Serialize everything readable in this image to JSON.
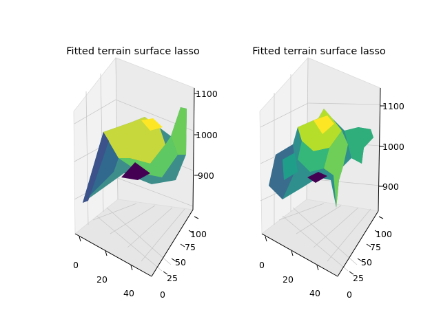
{
  "chart_data": [
    {
      "type": "surface",
      "title": "Fitted terrain surface lasso",
      "colormap": "viridis",
      "grid": true,
      "x_ticks": [
        "0",
        "20",
        "40"
      ],
      "y_ticks": [
        "0",
        "25",
        "50",
        "75",
        "100"
      ],
      "z_ticks": [
        "900",
        "1000",
        "1100"
      ],
      "xlim": [
        0,
        50
      ],
      "ylim": [
        0,
        100
      ],
      "zlim": [
        820,
        1110
      ],
      "z_range": [
        850,
        1080
      ],
      "surface": "smooth"
    },
    {
      "type": "surface",
      "title": "Fitted terrain surface lasso",
      "colormap": "viridis",
      "grid": true,
      "x_ticks": [
        "0",
        "20",
        "40"
      ],
      "y_ticks": [
        "0",
        "25",
        "50",
        "75",
        "100"
      ],
      "z_ticks": [
        "900",
        "1000",
        "1100"
      ],
      "xlim": [
        0,
        50
      ],
      "ylim": [
        0,
        100
      ],
      "zlim": [
        845,
        1130
      ],
      "z_range": [
        860,
        1060
      ],
      "surface": "noisy"
    }
  ]
}
